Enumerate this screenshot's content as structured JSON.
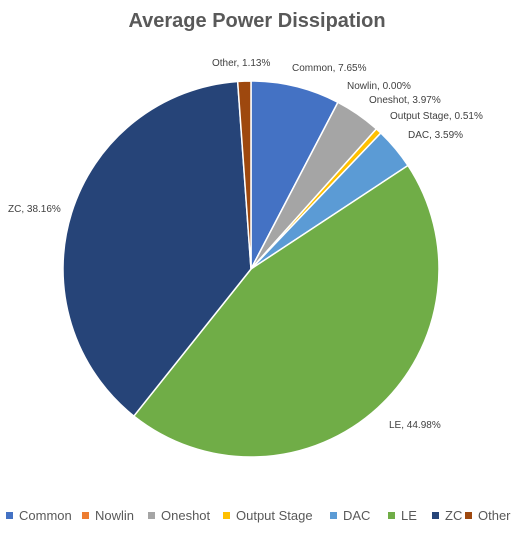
{
  "chart_data": {
    "type": "pie",
    "title": "Average Power Dissipation",
    "slices": [
      {
        "name": "Common",
        "value": 7.65,
        "label": "Common, 7.65%",
        "color": "#4472C4"
      },
      {
        "name": "Nowlin",
        "value": 0.0,
        "label": "Nowlin, 0.00%",
        "color": "#ED7D31"
      },
      {
        "name": "Oneshot",
        "value": 3.97,
        "label": "Oneshot, 3.97%",
        "color": "#A5A5A5"
      },
      {
        "name": "Output Stage",
        "value": 0.51,
        "label": "Output Stage, 0.51%",
        "color": "#FFC000"
      },
      {
        "name": "DAC",
        "value": 3.59,
        "label": "DAC, 3.59%",
        "color": "#5B9BD5"
      },
      {
        "name": "LE",
        "value": 44.98,
        "label": "LE, 44.98%",
        "color": "#70AD47"
      },
      {
        "name": "ZC",
        "value": 38.16,
        "label": "ZC, 38.16%",
        "color": "#264478"
      },
      {
        "name": "Other",
        "value": 1.13,
        "label": "Other, 1.13%",
        "color": "#9E480E"
      }
    ],
    "legend_position": "bottom"
  }
}
